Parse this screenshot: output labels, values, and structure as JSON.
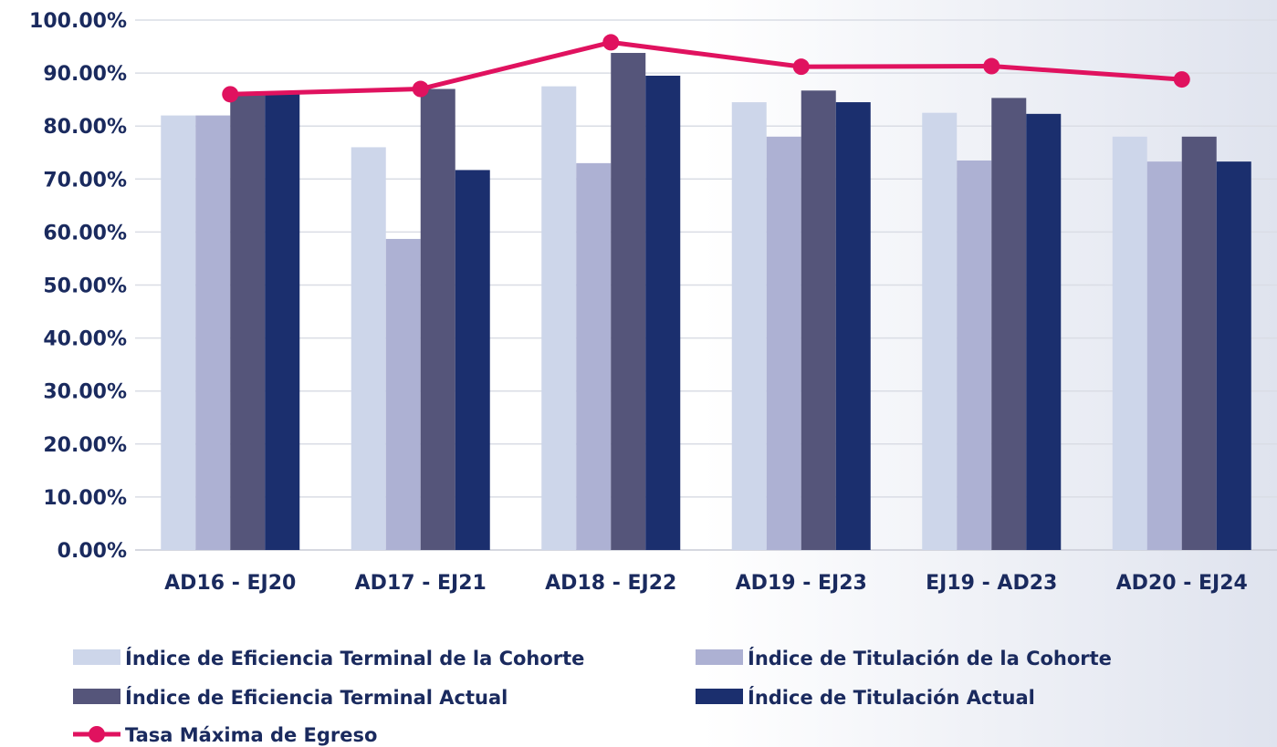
{
  "chart_data": {
    "type": "bar",
    "categories": [
      "AD16 - EJ20",
      "AD17 - EJ21",
      "AD18 - EJ22",
      "AD19 - EJ23",
      "EJ19 - AD23",
      "AD20 - EJ24"
    ],
    "ylim": [
      0,
      100
    ],
    "yticks": [
      "0.00%",
      "10.00%",
      "20.00%",
      "30.00%",
      "40.00%",
      "50.00%",
      "60.00%",
      "70.00%",
      "80.00%",
      "90.00%",
      "100.00%"
    ],
    "series": [
      {
        "name": "Índice de Eficiencia Terminal de la Cohorte",
        "kind": "bar",
        "color": "#cdd6ea",
        "values": [
          82.0,
          76.0,
          87.5,
          84.5,
          82.5,
          78.0
        ]
      },
      {
        "name": "Índice de Titulación de la Cohorte",
        "kind": "bar",
        "color": "#adb1d3",
        "values": [
          82.0,
          58.7,
          73.0,
          78.0,
          73.5,
          73.3
        ]
      },
      {
        "name": "Índice de Eficiencia Terminal Actual",
        "kind": "bar",
        "color": "#55557a",
        "values": [
          86.0,
          87.0,
          93.8,
          86.7,
          85.3,
          78.0
        ]
      },
      {
        "name": "Índice de Titulación Actual",
        "kind": "bar",
        "color": "#1b2f6e",
        "values": [
          86.0,
          71.7,
          89.5,
          84.5,
          82.3,
          73.3
        ]
      },
      {
        "name": "Tasa Máxima de Egreso",
        "kind": "line",
        "color": "#e0125f",
        "values": [
          86.0,
          87.0,
          95.8,
          91.2,
          91.3,
          88.8
        ]
      }
    ],
    "grid": true,
    "legend_position": "bottom-left"
  }
}
